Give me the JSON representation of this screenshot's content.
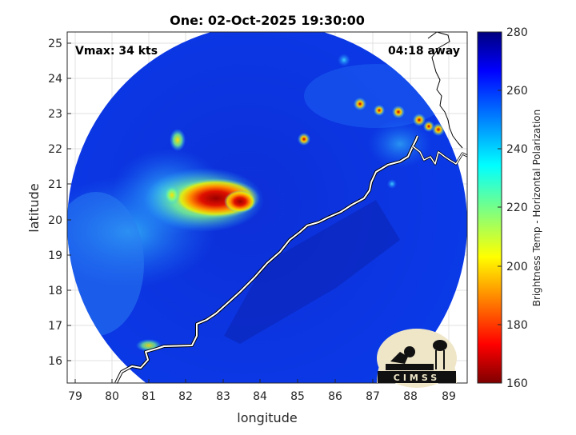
{
  "title": "One: 02-Oct-2025 19:30:00",
  "vmax_text": "Vmax: 34 kts",
  "away_text": "04:18 away",
  "xlabel": "longitude",
  "ylabel": "latitude",
  "colorbar_label": "Brightness Temp - Horizontal Polarization",
  "logo_text": "CIMSS",
  "x_ticks": [
    "79",
    "80",
    "81",
    "82",
    "83",
    "84",
    "85",
    "86",
    "87",
    "88",
    "89"
  ],
  "y_ticks": [
    "25",
    "24",
    "23",
    "22",
    "21",
    "20",
    "19",
    "18",
    "17",
    "16"
  ],
  "cbar_ticks": [
    "280",
    "260",
    "240",
    "220",
    "200",
    "180",
    "160"
  ],
  "chart_data": {
    "type": "heatmap",
    "xlim": [
      78.8,
      89.4
    ],
    "ylim": [
      15.3,
      25.4
    ],
    "clim": [
      160,
      280
    ],
    "swath_center": [
      84.5,
      19.9
    ],
    "swath_radius_deg": 5.45,
    "background_tb": 262,
    "features": [
      {
        "lon": 82.5,
        "lat": 20.7,
        "tb": 175
      },
      {
        "lon": 83.0,
        "lat": 20.6,
        "tb": 180
      },
      {
        "lon": 83.4,
        "lat": 20.5,
        "tb": 185
      },
      {
        "lon": 82.0,
        "lat": 20.7,
        "tb": 210
      },
      {
        "lon": 81.7,
        "lat": 22.4,
        "tb": 215
      },
      {
        "lon": 85.2,
        "lat": 22.3,
        "tb": 205
      },
      {
        "lon": 87.0,
        "lat": 23.3,
        "tb": 190
      },
      {
        "lon": 87.6,
        "lat": 23.1,
        "tb": 190
      },
      {
        "lon": 88.2,
        "lat": 22.8,
        "tb": 200
      },
      {
        "lon": 88.7,
        "lat": 22.6,
        "tb": 200
      },
      {
        "lon": 81.0,
        "lat": 16.4,
        "tb": 215
      }
    ],
    "colormap": "jet"
  }
}
